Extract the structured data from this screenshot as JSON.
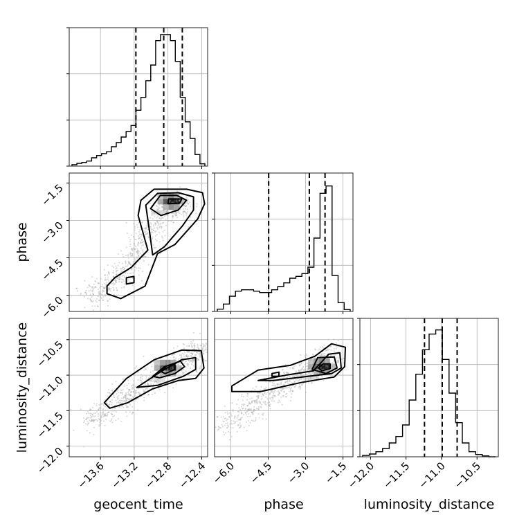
{
  "chart_data": {
    "type": "corner",
    "parameters": [
      "geocent_time",
      "phase",
      "luminosity_distance"
    ],
    "labels": {
      "x": [
        "geocent_time",
        "phase",
        "luminosity_distance"
      ],
      "y": [
        "phase",
        "luminosity_distance"
      ]
    },
    "ranges": {
      "geocent_time": [
        -13.97,
        -12.33
      ],
      "phase": [
        -6.65,
        -1.1
      ],
      "luminosity_distance": [
        -12.15,
        -10.2
      ]
    },
    "ticks": {
      "geocent_time": [
        "−13.6",
        "−13.2",
        "−12.8",
        "−12.4"
      ],
      "phase": [
        "−6.0",
        "−4.5",
        "−3.0",
        "−1.5"
      ],
      "luminosity_distance": [
        "−12.0",
        "−11.5",
        "−11.0",
        "−10.5"
      ]
    },
    "quantiles": {
      "geocent_time": [
        -13.18,
        -12.85,
        -12.63
      ],
      "phase": [
        -4.48,
        -2.85,
        -2.22
      ],
      "luminosity_distance": [
        -11.24,
        -10.99,
        -10.78
      ]
    },
    "histograms": {
      "geocent_time": [
        0.3,
        0.6,
        0.8,
        1.1,
        1.8,
        2.3,
        2.7,
        3.1,
        4.2,
        5.1,
        6.3,
        7.5,
        8.8,
        12.1,
        14.9,
        18.5,
        21.9,
        27.2,
        28.5,
        28.5,
        27.2,
        22.7,
        14.9,
        9.6,
        6.0,
        2.5,
        0.5
      ],
      "phase": [
        0.5,
        1.6,
        3.3,
        4.4,
        4.7,
        4.7,
        4.4,
        4.1,
        4.1,
        4.7,
        5.4,
        6.2,
        7.2,
        7.6,
        8.2,
        9.6,
        15.9,
        25.6,
        27.2,
        7.8,
        1.9,
        0.4
      ],
      "luminosity_distance": [
        0.3,
        0.6,
        1.1,
        1.8,
        3.0,
        4.4,
        6.9,
        12.3,
        17.9,
        23.2,
        26.6,
        27.5,
        21.1,
        13.8,
        7.4,
        3.0,
        1.1,
        0.5,
        0.2,
        0.0
      ]
    },
    "grid": true
  }
}
